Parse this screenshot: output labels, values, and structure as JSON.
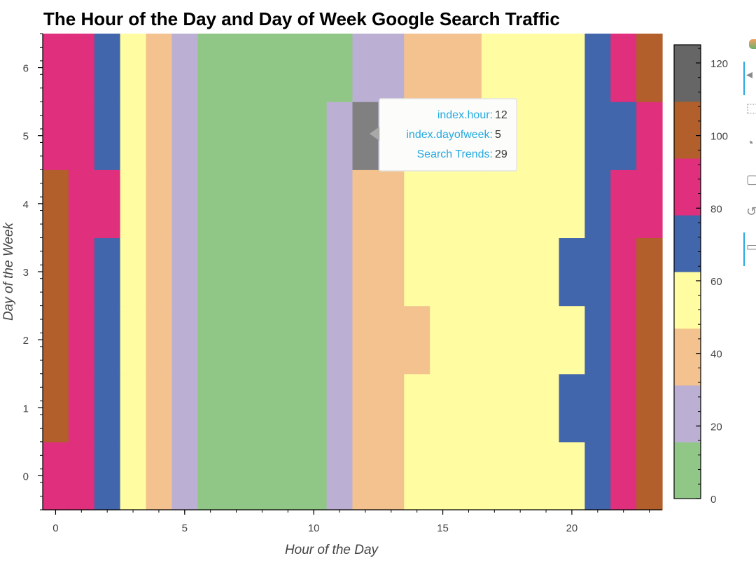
{
  "chart_data": {
    "type": "heatmap",
    "title": "The Hour of the Day and Day of Week Google Search Traffic",
    "xlabel": "Hour of the Day",
    "ylabel": "Day of the Week",
    "x": [
      0,
      1,
      2,
      3,
      4,
      5,
      6,
      7,
      8,
      9,
      10,
      11,
      12,
      13,
      14,
      15,
      16,
      17,
      18,
      19,
      20,
      21,
      22,
      23
    ],
    "y": [
      0,
      1,
      2,
      3,
      4,
      5,
      6
    ],
    "xlim": [
      -0.5,
      23.5
    ],
    "ylim": [
      -0.5,
      6.5
    ],
    "xticks": [
      0,
      5,
      10,
      15,
      20
    ],
    "yticks": [
      0,
      1,
      2,
      3,
      4,
      5,
      6
    ],
    "values": [
      [
        85,
        85,
        70,
        55,
        45,
        25,
        10,
        10,
        10,
        10,
        10,
        25,
        45,
        45,
        55,
        55,
        55,
        55,
        55,
        55,
        55,
        70,
        85,
        105
      ],
      [
        105,
        85,
        70,
        55,
        45,
        25,
        10,
        10,
        10,
        10,
        10,
        25,
        45,
        45,
        55,
        55,
        55,
        55,
        55,
        55,
        70,
        70,
        85,
        105
      ],
      [
        105,
        85,
        70,
        55,
        45,
        25,
        10,
        10,
        10,
        10,
        10,
        25,
        45,
        45,
        45,
        55,
        55,
        55,
        55,
        55,
        55,
        70,
        85,
        105
      ],
      [
        105,
        85,
        70,
        55,
        45,
        25,
        10,
        10,
        10,
        10,
        10,
        25,
        45,
        45,
        55,
        55,
        55,
        55,
        55,
        55,
        70,
        70,
        85,
        105
      ],
      [
        105,
        85,
        85,
        55,
        45,
        25,
        10,
        10,
        10,
        10,
        10,
        25,
        45,
        45,
        55,
        55,
        55,
        55,
        55,
        55,
        55,
        70,
        85,
        85
      ],
      [
        85,
        85,
        70,
        55,
        45,
        25,
        10,
        10,
        10,
        10,
        10,
        25,
        29,
        25,
        45,
        45,
        55,
        55,
        55,
        55,
        55,
        70,
        70,
        85
      ],
      [
        85,
        85,
        70,
        55,
        45,
        25,
        10,
        10,
        10,
        10,
        10,
        10,
        25,
        25,
        45,
        45,
        45,
        55,
        55,
        55,
        55,
        70,
        85,
        105
      ]
    ],
    "colorbar": {
      "min": 0,
      "max": 125,
      "ticks": [
        0,
        20,
        40,
        60,
        80,
        100,
        120
      ],
      "bins": [
        {
          "from": 0,
          "to": 15.6,
          "color": "#91c786"
        },
        {
          "from": 15.6,
          "to": 31.25,
          "color": "#bbafd3"
        },
        {
          "from": 31.25,
          "to": 46.9,
          "color": "#f4c28e"
        },
        {
          "from": 46.9,
          "to": 62.5,
          "color": "#fffca1"
        },
        {
          "from": 62.5,
          "to": 78.1,
          "color": "#4266ab"
        },
        {
          "from": 78.1,
          "to": 93.75,
          "color": "#df2f7d"
        },
        {
          "from": 93.75,
          "to": 109.4,
          "color": "#b25f2b"
        },
        {
          "from": 109.4,
          "to": 125,
          "color": "#666666"
        }
      ]
    },
    "highlight": {
      "hour": 12,
      "dayofweek": 5,
      "color": "#808080"
    },
    "tooltip": {
      "rows": [
        {
          "key": "index.hour:",
          "value": "12"
        },
        {
          "key": "index.dayofweek:",
          "value": "5"
        },
        {
          "key": "Search Trends:",
          "value": "29"
        }
      ]
    },
    "grid": false,
    "legend": "colorbar-right"
  }
}
